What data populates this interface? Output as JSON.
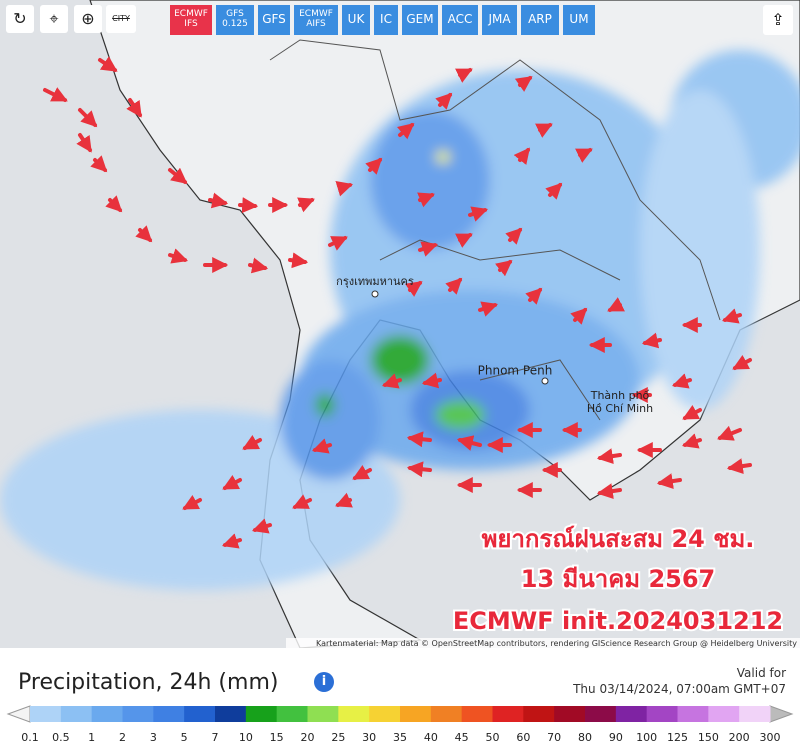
{
  "toolbar": {
    "city_button": "CITY",
    "models": [
      {
        "lines": [
          "ECMWF",
          "IFS"
        ],
        "active": true
      },
      {
        "lines": [
          "GFS",
          "0.125"
        ],
        "active": false
      },
      {
        "lines": [
          "GFS"
        ],
        "active": false
      },
      {
        "lines": [
          "ECMWF",
          "AIFS"
        ],
        "active": false
      },
      {
        "lines": [
          "UK"
        ],
        "active": false
      },
      {
        "lines": [
          "IC"
        ],
        "active": false
      },
      {
        "lines": [
          "GEM"
        ],
        "active": false
      },
      {
        "lines": [
          "ACC"
        ],
        "active": false
      },
      {
        "lines": [
          "JMA"
        ],
        "active": false
      },
      {
        "lines": [
          "ARP"
        ],
        "active": false
      },
      {
        "lines": [
          "UM"
        ],
        "active": false
      }
    ]
  },
  "map": {
    "cities": [
      {
        "label": "กรุงเทพมหานคร"
      },
      {
        "label": "Phnom Penh"
      },
      {
        "label": "Thành phố"
      },
      {
        "label": "Hồ Chí Minh"
      }
    ],
    "overlay": [
      "พยากรณ์ฝนสะสม 24 ชม.",
      "13 มีนาคม 2567",
      "ECMWF init.2024031212"
    ],
    "attribution": "Kartenmaterial: Map data © OpenStreetMap contributors, rendering GIScience Research Group @ Heidelberg University"
  },
  "footer": {
    "title": "Precipitation, 24h (mm)",
    "valid_label": "Valid for",
    "valid_time": "Thu 03/14/2024, 07:00am GMT+07",
    "legend": {
      "labels": [
        "0.1",
        "0.5",
        "1",
        "2",
        "3",
        "5",
        "7",
        "10",
        "15",
        "20",
        "25",
        "30",
        "35",
        "40",
        "45",
        "50",
        "60",
        "70",
        "80",
        "90",
        "100",
        "125",
        "150",
        "200",
        "300"
      ],
      "colors": [
        "#aed3f7",
        "#8cc0f3",
        "#6aa9ee",
        "#5595ea",
        "#3f80e3",
        "#2261cf",
        "#0f3d9c",
        "#17a11b",
        "#42c13f",
        "#8fdf52",
        "#e7f045",
        "#f6d233",
        "#f7a523",
        "#f08024",
        "#ef5322",
        "#df2323",
        "#c01414",
        "#a10a25",
        "#8c0b48",
        "#7f23a3",
        "#a345c4",
        "#c674e0",
        "#e1a5f2",
        "#f1d3f8"
      ]
    }
  }
}
